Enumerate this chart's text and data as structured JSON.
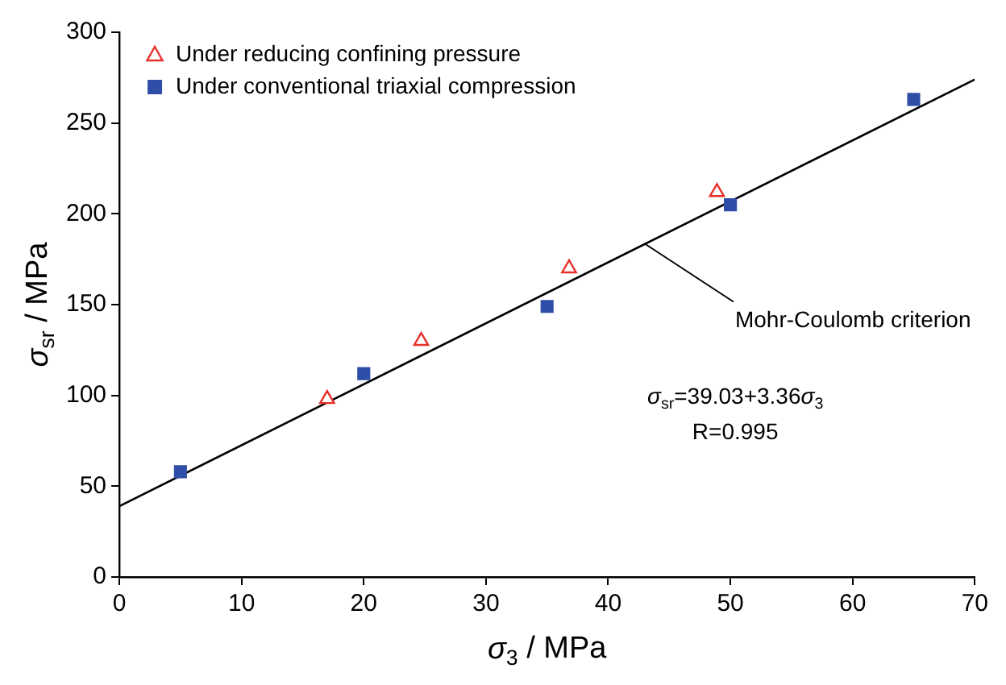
{
  "chart_data": {
    "type": "scatter",
    "xlabel": "σ$_{3}$ / MPa",
    "ylabel": "σ$_{sr}$ / MPa",
    "xlim": [
      0,
      70
    ],
    "xticks": [
      0,
      10,
      20,
      30,
      40,
      50,
      60,
      70
    ],
    "ylim": [
      0,
      300
    ],
    "yticks": [
      0,
      50,
      100,
      150,
      200,
      250,
      300
    ],
    "grid": false,
    "legend": "top left",
    "series": [
      {
        "name": "Under reducing confining pressure",
        "color": "#e8302a",
        "marker": "triangle",
        "x": [
          17,
          24.7,
          36.8,
          48.9
        ],
        "values": [
          98,
          130,
          170,
          212
        ]
      },
      {
        "name": "Under conventional triaxial compression",
        "color": "#2f4ea8",
        "marker": "square",
        "x": [
          5,
          20,
          35,
          50,
          65
        ],
        "values": [
          58,
          112,
          149,
          205,
          263
        ]
      },
      {
        "type": "line",
        "color": "#000000",
        "marker": "none",
        "x": [
          0,
          70
        ],
        "values": [
          39,
          274
        ]
      }
    ],
    "annotations": [
      {
        "text": "Mohr-Coulomb criterion",
        "x": 43,
        "y": 183.5
      },
      "σ$_{sr}$=39.03+3.36σ$_{3}$",
      "R=0.995"
    ]
  }
}
